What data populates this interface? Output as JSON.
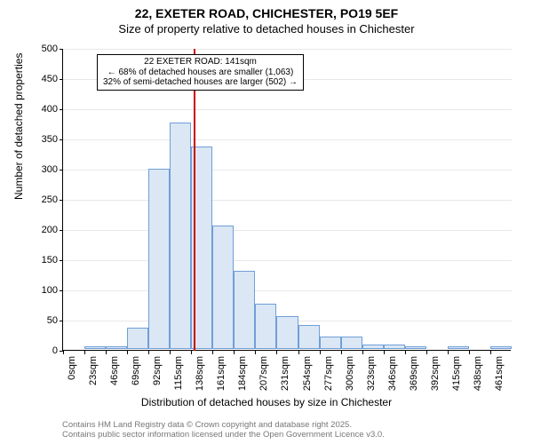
{
  "title": "22, EXETER ROAD, CHICHESTER, PO19 5EF",
  "subtitle": "Size of property relative to detached houses in Chichester",
  "ylabel": "Number of detached properties",
  "xlabel": "Distribution of detached houses by size in Chichester",
  "chart": {
    "type": "histogram",
    "ylim": [
      0,
      500
    ],
    "ytick_step": 50,
    "background_color": "#ffffff",
    "grid_color": "#e8e8e8",
    "bar_fill": "#dbe7f4",
    "bar_border": "#6f9fd8",
    "bar_width_ratio": 1.0,
    "reference_line": {
      "x_value": 141,
      "color": "#cc0000",
      "width": 2
    },
    "categories": [
      "0sqm",
      "23sqm",
      "46sqm",
      "69sqm",
      "92sqm",
      "115sqm",
      "138sqm",
      "161sqm",
      "184sqm",
      "207sqm",
      "231sqm",
      "254sqm",
      "277sqm",
      "300sqm",
      "323sqm",
      "346sqm",
      "369sqm",
      "392sqm",
      "415sqm",
      "438sqm",
      "461sqm"
    ],
    "values": [
      0,
      5,
      5,
      35,
      298,
      375,
      335,
      205,
      130,
      75,
      55,
      40,
      20,
      20,
      8,
      8,
      4,
      0,
      5,
      0,
      5
    ],
    "title_fontsize": 14,
    "label_fontsize": 12,
    "tick_fontsize": 11
  },
  "annotation": {
    "line1": "22 EXETER ROAD: 141sqm",
    "line2": "← 68% of detached houses are smaller (1,063)",
    "line3": "32% of semi-detached houses are larger (502) →",
    "border_color": "#000000",
    "background": "#ffffff",
    "fontsize": 10
  },
  "footer": {
    "line1": "Contains HM Land Registry data © Crown copyright and database right 2025.",
    "line2": "Contains public sector information licensed under the Open Government Licence v3.0.",
    "color": "#777777",
    "fontsize": 9.5
  }
}
